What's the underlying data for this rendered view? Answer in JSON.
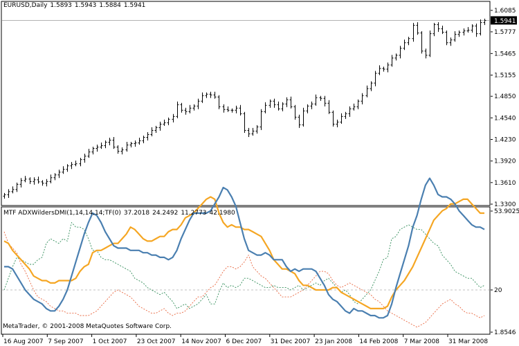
{
  "main": {
    "symbol": "EURUSD",
    "timeframe": "Daily",
    "ohlc": [
      "1.5893",
      "1.5943",
      "1.5884",
      "1.5941"
    ],
    "price_ticks": [
      "1.6085",
      "1.5777",
      "1.5465",
      "1.5155",
      "1.4850",
      "1.4540",
      "1.4230",
      "1.3920",
      "1.3610",
      "1.3300"
    ],
    "current_price": "1.5941",
    "ylim": [
      1.33,
      1.6085
    ]
  },
  "sub": {
    "indicator_name": "MTF ADXWildersDMI(1,14,14,14;TF(0)",
    "values": [
      "37.2018",
      "24.2492",
      "11.2773",
      "42.1980"
    ],
    "ticks": [
      "53.9025",
      "20",
      "1.8546"
    ],
    "ylim": [
      1.8546,
      53.9025
    ],
    "level": 20
  },
  "copyright": "MetaTrader, © 2001-2008 MetaQuotes Software Corp.",
  "dates": [
    "16 Aug 2007",
    "7 Sep 2007",
    "1 Oct 2007",
    "23 Oct 2007",
    "14 Nov 2007",
    "6 Dec 2007",
    "31 Dec 2007",
    "23 Jan 2008",
    "14 Feb 2008",
    "7 Mar 2008",
    "31 Mar 2008"
  ],
  "colors": {
    "background": "#ffffff",
    "foreground": "#000000",
    "adx": "#4a7fb0",
    "adxr": "#f5a623",
    "plus_di": "#2e8b57",
    "minus_di": "#e8643c",
    "level": "#c0c0c0"
  },
  "chart_data": [
    {
      "type": "ohlc",
      "series": [
        {
          "name": "EURUSD",
          "close": [
            1.3435,
            1.348,
            1.351,
            1.3585,
            1.364,
            1.366,
            1.3625,
            1.365,
            1.362,
            1.36,
            1.3625,
            1.368,
            1.372,
            1.376,
            1.38,
            1.385,
            1.387,
            1.388,
            1.394,
            1.399,
            1.405,
            1.41,
            1.412,
            1.414,
            1.419,
            1.422,
            1.412,
            1.406,
            1.408,
            1.415,
            1.417,
            1.418,
            1.421,
            1.426,
            1.43,
            1.436,
            1.44,
            1.445,
            1.447,
            1.452,
            1.456,
            1.473,
            1.465,
            1.463,
            1.468,
            1.471,
            1.478,
            1.486,
            1.488,
            1.487,
            1.484,
            1.47,
            1.466,
            1.465,
            1.465,
            1.468,
            1.46,
            1.436,
            1.431,
            1.435,
            1.441,
            1.463,
            1.472,
            1.478,
            1.473,
            1.467,
            1.474,
            1.48,
            1.47,
            1.455,
            1.444,
            1.464,
            1.471,
            1.474,
            1.483,
            1.482,
            1.475,
            1.462,
            1.445,
            1.448,
            1.456,
            1.46,
            1.467,
            1.47,
            1.478,
            1.486,
            1.496,
            1.504,
            1.518,
            1.525,
            1.524,
            1.53,
            1.54,
            1.544,
            1.554,
            1.562,
            1.568,
            1.587,
            1.576,
            1.55,
            1.544,
            1.575,
            1.588,
            1.582,
            1.577,
            1.562,
            1.566,
            1.574,
            1.577,
            1.579,
            1.58,
            1.586,
            1.575,
            1.591,
            1.5941
          ]
        }
      ]
    },
    {
      "type": "line",
      "series": [
        {
          "name": "ADX",
          "values": [
            30,
            30,
            29,
            26,
            23,
            20,
            18,
            16,
            15,
            14,
            12,
            11,
            11,
            13,
            16,
            20,
            26,
            32,
            38,
            44,
            49,
            53,
            52,
            49,
            45,
            42,
            39,
            38,
            38,
            38,
            37,
            37,
            37,
            36,
            36,
            35,
            35,
            34,
            34,
            33,
            34,
            37,
            42,
            46,
            50,
            53,
            53,
            53,
            53,
            54,
            57,
            60,
            64,
            63,
            60,
            56,
            49,
            42,
            37,
            36,
            35,
            35,
            36,
            35,
            33,
            33,
            33,
            30,
            28,
            29,
            28,
            29,
            29,
            29,
            28,
            25,
            22,
            18,
            16,
            15,
            13,
            11,
            10,
            12,
            11,
            11,
            10,
            9,
            9,
            8,
            8,
            9,
            14,
            21,
            27,
            33,
            39,
            47,
            52,
            59,
            65,
            68,
            65,
            61,
            60,
            60,
            59,
            57,
            54,
            52,
            50,
            48,
            47,
            47,
            46
          ]
        },
        {
          "name": "ADXR",
          "values": [
            41,
            40,
            37,
            35,
            33,
            31,
            29,
            26,
            25,
            24,
            24,
            23,
            23,
            24,
            24,
            24,
            24,
            25,
            28,
            30,
            31,
            36,
            37,
            37,
            38,
            39,
            40,
            40,
            42,
            44,
            47,
            46,
            44,
            42,
            41,
            41,
            42,
            43,
            43,
            45,
            46,
            46,
            48,
            51,
            52,
            53,
            55,
            57,
            59,
            60,
            59,
            53,
            49,
            47,
            48,
            47,
            47,
            46,
            46,
            45,
            44,
            43,
            40,
            37,
            33,
            31,
            29,
            29,
            28,
            27,
            24,
            22,
            22,
            21,
            20,
            20,
            20,
            20,
            21,
            21,
            19,
            18,
            17,
            16,
            15,
            14,
            13,
            12,
            12,
            12,
            12,
            13,
            17,
            20,
            22,
            24,
            27,
            30,
            34,
            38,
            42,
            46,
            50,
            52,
            54,
            55,
            57,
            57,
            58,
            59,
            59,
            57,
            55,
            53,
            53
          ]
        },
        {
          "name": "+DI",
          "values": [
            20,
            25,
            30,
            34,
            33,
            32,
            31,
            31,
            33,
            34,
            40,
            42,
            41,
            40,
            42,
            41,
            49,
            47,
            47,
            46,
            42,
            37,
            37,
            34,
            33,
            33,
            32,
            31,
            30,
            29,
            28,
            25,
            24,
            23,
            21,
            20,
            19,
            18,
            19,
            17,
            15,
            12,
            13,
            14,
            12,
            13,
            14,
            16,
            18,
            14,
            14,
            19,
            23,
            21,
            22,
            21,
            22,
            25,
            25,
            24,
            23,
            22,
            21,
            21,
            22,
            21,
            21,
            21,
            20,
            21,
            22,
            20,
            21,
            22,
            23,
            22,
            24,
            25,
            23,
            21,
            19,
            20,
            18,
            15,
            14,
            16,
            18,
            20,
            24,
            28,
            33,
            34,
            42,
            43,
            46,
            47,
            48,
            47,
            46,
            46,
            44,
            42,
            40,
            39,
            35,
            33,
            31,
            28,
            27,
            26,
            25,
            25,
            23,
            21,
            22
          ]
        },
        {
          "name": "-DI",
          "values": [
            45,
            40,
            38,
            36,
            31,
            28,
            24,
            20,
            17,
            16,
            15,
            13,
            12,
            11,
            11,
            10,
            10,
            10,
            9,
            9,
            9,
            10,
            11,
            13,
            15,
            17,
            19,
            20,
            19,
            18,
            17,
            15,
            13,
            12,
            11,
            10,
            10,
            11,
            12,
            10,
            9,
            10,
            10,
            11,
            13,
            15,
            17,
            17,
            19,
            21,
            22,
            25,
            28,
            30,
            30,
            29,
            30,
            32,
            35,
            30,
            28,
            26,
            25,
            23,
            21,
            19,
            17,
            17,
            17,
            18,
            19,
            20,
            22,
            24,
            26,
            28,
            28,
            27,
            24,
            22,
            21,
            22,
            23,
            22,
            21,
            20,
            19,
            18,
            16,
            15,
            13,
            11,
            10,
            9,
            8,
            7,
            6,
            5,
            4,
            5,
            6,
            8,
            10,
            12,
            14,
            15,
            16,
            14,
            13,
            11,
            10,
            10,
            9,
            8,
            9
          ]
        }
      ]
    }
  ]
}
